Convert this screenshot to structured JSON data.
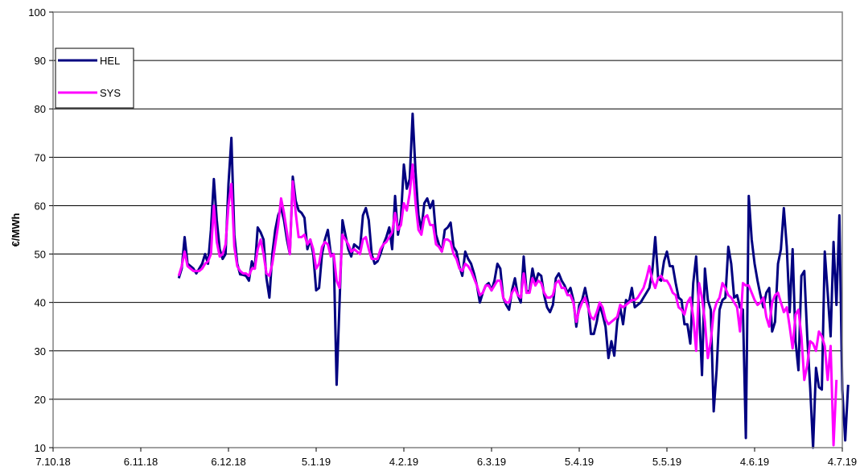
{
  "chart_data": {
    "type": "line",
    "title": "",
    "xlabel": "",
    "ylabel": "€/MWh",
    "ylim": [
      10,
      100
    ],
    "yticks": [
      10,
      20,
      30,
      40,
      50,
      60,
      70,
      80,
      90,
      100
    ],
    "xlim": [
      "2018-10-07",
      "2019-07-04"
    ],
    "xtick_labels": [
      "7.10.18",
      "6.11.18",
      "6.12.18",
      "5.1.19",
      "4.2.19",
      "6.3.19",
      "5.4.19",
      "5.5.19",
      "4.6.19",
      "4.7.19"
    ],
    "grid": "horizontal",
    "legend_position": "top-left",
    "start_date": "2018-11-19",
    "series": [
      {
        "name": "HEL",
        "color": "#000080",
        "values": [
          45,
          47,
          53.5,
          48,
          47.5,
          47,
          46,
          47,
          48,
          50,
          48,
          55,
          65.5,
          57,
          51,
          49,
          50,
          64.5,
          74,
          54,
          48,
          45.8,
          45.7,
          45.5,
          44.5,
          48.5,
          47,
          55.5,
          54.5,
          53,
          45,
          41,
          50,
          55,
          58,
          59.5,
          57,
          53,
          50,
          66,
          61,
          59,
          58.5,
          57.5,
          51,
          53,
          50,
          42.5,
          43,
          50,
          53,
          55,
          50,
          50,
          23,
          40,
          57,
          54,
          51,
          49.5,
          52,
          51.5,
          51,
          58,
          59.5,
          57,
          50,
          48,
          48.5,
          50,
          52,
          53.5,
          55.5,
          51,
          62,
          54,
          57.5,
          68.5,
          63.5,
          65.5,
          79,
          67,
          58,
          55,
          60.5,
          61.5,
          59.5,
          61,
          54,
          52,
          50.5,
          55,
          55.5,
          56.5,
          51.5,
          50.5,
          47.5,
          45.5,
          50.5,
          49,
          48,
          46,
          43.5,
          40,
          42,
          43.5,
          44,
          42.5,
          44.5,
          48,
          47,
          41,
          39.5,
          38.5,
          42.5,
          45,
          41.5,
          40,
          49.5,
          42,
          42.5,
          47,
          44,
          46,
          45.5,
          41.5,
          39,
          38,
          39.5,
          45,
          46,
          44.5,
          43.5,
          42,
          43,
          40.5,
          35,
          39.5,
          40.5,
          43,
          40,
          33.5,
          33.5,
          36,
          39.5,
          37.5,
          35,
          28.5,
          32,
          29,
          36,
          39,
          35.5,
          40.5,
          40,
          43,
          39,
          39.5,
          40,
          41,
          42,
          43,
          46.5,
          53.5,
          45,
          44.5,
          48.5,
          50.5,
          47.5,
          47.5,
          44,
          41,
          40.5,
          35.5,
          35.5,
          31.5,
          44,
          49.5,
          38.5,
          25,
          47,
          40.5,
          38.5,
          17.5,
          26,
          38.5,
          40.5,
          41,
          51.5,
          48,
          41,
          41.5,
          39,
          38.5,
          12,
          62,
          53,
          48,
          44.5,
          41.5,
          39,
          42,
          43,
          34,
          36,
          48,
          51,
          59.5,
          51.5,
          38,
          51,
          32,
          26,
          45.5,
          46.5,
          33,
          22.5,
          10,
          26.5,
          22.5,
          22,
          50.5,
          42,
          33,
          52.5,
          39.5,
          58,
          22,
          11.5,
          23
        ]
      },
      {
        "name": "SYS",
        "color": "#FF00FF",
        "values": [
          45.5,
          47.5,
          50.5,
          47.5,
          47,
          46.5,
          46.5,
          46.5,
          47,
          48,
          48.5,
          50,
          60,
          52.5,
          49.5,
          50,
          52,
          60,
          64.5,
          51.5,
          47.5,
          46.5,
          46,
          46,
          45.5,
          47,
          47,
          51,
          53,
          50,
          46,
          45.5,
          48,
          52,
          56,
          61.5,
          58.5,
          54.5,
          50,
          65,
          58.5,
          53.5,
          53.5,
          54,
          52,
          53,
          51,
          47,
          48,
          51.5,
          52.5,
          52,
          49.5,
          50,
          44.5,
          43,
          54,
          53,
          52,
          50.5,
          51,
          50.5,
          50,
          53,
          53.5,
          51,
          49,
          49,
          49,
          51,
          52,
          52.5,
          53.5,
          54.5,
          58.5,
          55,
          56,
          60.5,
          59,
          62.5,
          68.5,
          60.5,
          55,
          54,
          57.5,
          58,
          56,
          56,
          52,
          51.5,
          50.5,
          53,
          53,
          52.5,
          50,
          49,
          47,
          46.5,
          48,
          47.5,
          46.5,
          45,
          43.5,
          41.5,
          42,
          43.5,
          43.5,
          42.5,
          43.5,
          44.5,
          44.5,
          41,
          40,
          40,
          42,
          43,
          41.5,
          41,
          46,
          42,
          42,
          45,
          43.5,
          44.5,
          44,
          42,
          41,
          41,
          41.5,
          44,
          44.5,
          43,
          43,
          41.5,
          41.5,
          40,
          36,
          38.5,
          40,
          41,
          39,
          37,
          36.5,
          38,
          40,
          39,
          36.5,
          35.5,
          36,
          36.5,
          37,
          39.5,
          39,
          39.5,
          40,
          40.5,
          40.5,
          41,
          42,
          43,
          45,
          47.5,
          44.5,
          43,
          45,
          45.5,
          44.5,
          44.5,
          43.5,
          42,
          41.5,
          39,
          38.5,
          37.5,
          40,
          41,
          37,
          30,
          44,
          41,
          36,
          28.5,
          32,
          38,
          40,
          41,
          44,
          43,
          41.5,
          41,
          40,
          39,
          34,
          44,
          43.5,
          43.5,
          42,
          40.5,
          39.5,
          40,
          41,
          37,
          35,
          40,
          41.5,
          42,
          40,
          38,
          39,
          35,
          30.5,
          37.5,
          38.5,
          33,
          24,
          27,
          32,
          31.5,
          30,
          34,
          33,
          31,
          24,
          31,
          10.5,
          24
        ]
      }
    ]
  }
}
